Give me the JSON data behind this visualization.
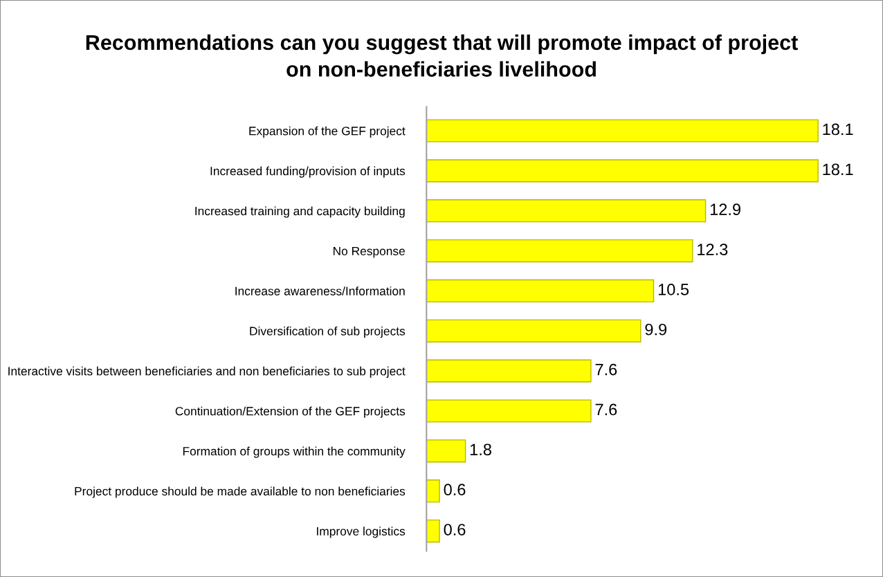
{
  "chart_data": {
    "type": "bar",
    "orientation": "horizontal",
    "title": "Recommendations can you suggest that will promote impact of project\non non-beneficiaries livelihood",
    "categories": [
      "Expansion of the GEF project",
      "Increased funding/provision of inputs",
      "Increased training and capacity building",
      "No Response",
      "Increase awareness/Information",
      "Diversification of sub projects",
      "Interactive visits between beneficiaries and non beneficiaries to sub project",
      "Continuation/Extension of the GEF projects",
      "Formation of groups within the community",
      "Project produce should be made available to non beneficiaries",
      "Improve logistics"
    ],
    "values": [
      18.1,
      18.1,
      12.9,
      12.3,
      10.5,
      9.9,
      7.6,
      7.6,
      1.8,
      0.6,
      0.6
    ],
    "color": "#ffff00",
    "data_labels": true,
    "tick_labels": "y"
  }
}
